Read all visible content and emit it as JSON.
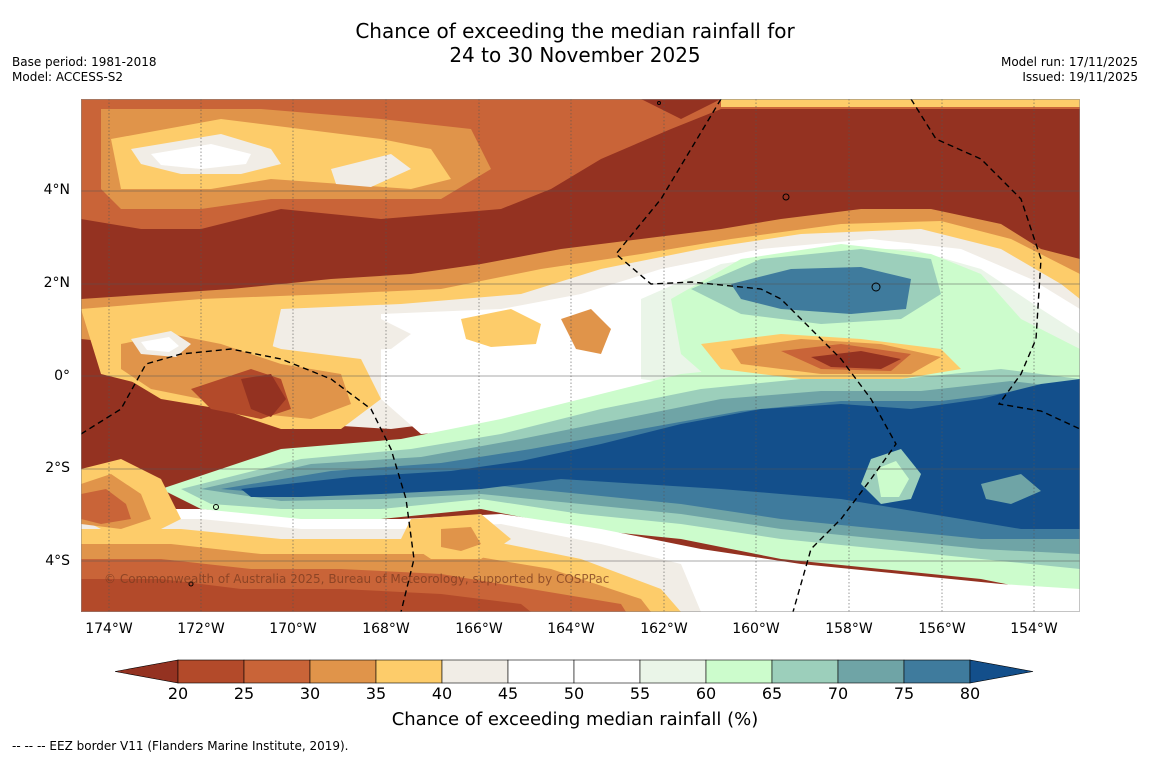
{
  "title": {
    "line1": "Chance of exceeding the median rainfall for",
    "line2": "24 to 30 November 2025"
  },
  "meta_left": {
    "base_period": "Base period: 1981-2018",
    "model": "Model: ACCESS-S2"
  },
  "meta_right": {
    "model_run": "Model run: 17/11/2025",
    "issued": "Issued: 19/11/2025"
  },
  "lat_labels": [
    "4°N",
    "2°N",
    "0°",
    "2°S",
    "4°S"
  ],
  "lon_labels": [
    "174°W",
    "172°W",
    "170°W",
    "168°W",
    "166°W",
    "164°W",
    "162°W",
    "160°W",
    "158°W",
    "156°W",
    "154°W"
  ],
  "copyright": "© Commonwealth of Australia 2025, Bureau of Meteorology, supported by COSPPac",
  "colorbar": {
    "ticks": [
      "20",
      "25",
      "30",
      "35",
      "40",
      "45",
      "50",
      "55",
      "60",
      "65",
      "70",
      "75",
      "80"
    ],
    "colors": {
      "below20": "#943221",
      "b20_25": "#b34a2a",
      "b25_30": "#c96438",
      "b30_35": "#e0944a",
      "b35_40": "#fdcc6a",
      "b40_45": "#f1ede6",
      "b45_50": "#ffffff",
      "b50_55": "#ffffff",
      "b55_60": "#eaf5e8",
      "b60_65": "#ccfccc",
      "b65_70": "#9ccfbb",
      "b70_75": "#6fa4a6",
      "b75_80": "#3f7b9d",
      "above80": "#134f8b"
    },
    "title": "Chance of exceeding median rainfall (%)"
  },
  "footnote": "--  --  -- EEZ border V11 (Flanders Marine Institute, 2019)."
}
